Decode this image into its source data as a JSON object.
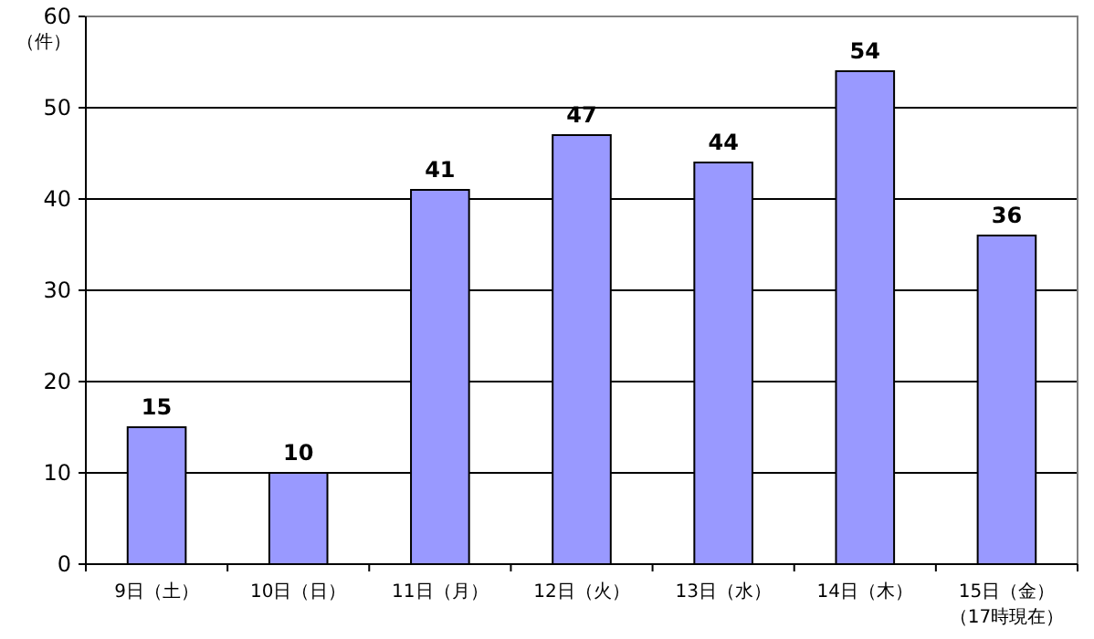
{
  "chart_data": {
    "type": "bar",
    "ylabel": "（件）",
    "categories": [
      "9日（土）",
      "10日（日）",
      "11日（月）",
      "12日（火）",
      "13日（水）",
      "14日（木）",
      "15日（金）（17時現在）"
    ],
    "values": [
      15,
      10,
      41,
      47,
      44,
      54,
      36
    ],
    "color": "#9999ff",
    "ylim": [
      0,
      60
    ],
    "yticks": [
      0,
      10,
      20,
      30,
      40,
      50,
      60
    ],
    "grid": "y",
    "data_labels": true
  }
}
